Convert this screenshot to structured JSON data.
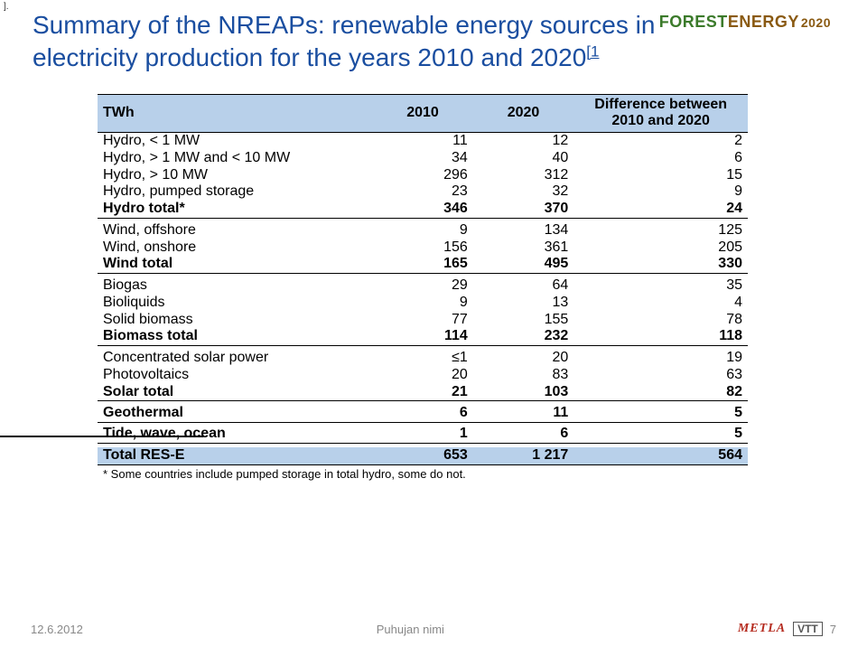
{
  "topleft": "].",
  "logo": {
    "forest": "FOREST",
    "energy": "ENERGY",
    "year": "2020"
  },
  "title": {
    "line1": "Summary of the NREAPs: renewable energy sources in",
    "line2": "electricity production for the years 2010 and 2020",
    "cite": "[1"
  },
  "table": {
    "head": {
      "c1": "TWh",
      "c2": "2010",
      "c3": "2020",
      "c4": "Difference between 2010 and 2020"
    },
    "rows": [
      {
        "sec": "hydro",
        "bold": false,
        "c1": "Hydro, < 1 MW",
        "c2": "11",
        "c3": "12",
        "c4": "2"
      },
      {
        "sec": "hydro",
        "bold": false,
        "c1": "Hydro, > 1 MW and < 10 MW",
        "c2": "34",
        "c3": "40",
        "c4": "6"
      },
      {
        "sec": "hydro",
        "bold": false,
        "c1": "Hydro, > 10 MW",
        "c2": "296",
        "c3": "312",
        "c4": "15"
      },
      {
        "sec": "hydro",
        "bold": false,
        "c1": "Hydro, pumped storage",
        "c2": "23",
        "c3": "32",
        "c4": "9"
      },
      {
        "sec": "hydro",
        "bold": true,
        "last": true,
        "c1": "Hydro total*",
        "c2": "346",
        "c3": "370",
        "c4": "24"
      },
      {
        "sec": "wind",
        "bold": false,
        "c1": "Wind, offshore",
        "c2": "9",
        "c3": "134",
        "c4": "125"
      },
      {
        "sec": "wind",
        "bold": false,
        "c1": "Wind, onshore",
        "c2": "156",
        "c3": "361",
        "c4": "205"
      },
      {
        "sec": "wind",
        "bold": true,
        "last": true,
        "c1": "Wind total",
        "c2": "165",
        "c3": "495",
        "c4": "330"
      },
      {
        "sec": "bio",
        "bold": false,
        "c1": "Biogas",
        "c2": "29",
        "c3": "64",
        "c4": "35"
      },
      {
        "sec": "bio",
        "bold": false,
        "c1": "Bioliquids",
        "c2": "9",
        "c3": "13",
        "c4": "4"
      },
      {
        "sec": "bio",
        "bold": false,
        "c1": "Solid biomass",
        "c2": "77",
        "c3": "155",
        "c4": "78"
      },
      {
        "sec": "bio",
        "bold": true,
        "last": true,
        "c1": "Biomass total",
        "c2": "114",
        "c3": "232",
        "c4": "118"
      },
      {
        "sec": "solar",
        "bold": false,
        "c1": "Concentrated solar power",
        "c2": "≤1",
        "c3": "20",
        "c4": "19"
      },
      {
        "sec": "solar",
        "bold": false,
        "c1": "Photovoltaics",
        "c2": "20",
        "c3": "83",
        "c4": "63"
      },
      {
        "sec": "solar",
        "bold": true,
        "last": true,
        "c1": "Solar total",
        "c2": "21",
        "c3": "103",
        "c4": "82"
      },
      {
        "sec": "geo",
        "bold": true,
        "last": true,
        "c1": "Geothermal",
        "c2": "6",
        "c3": "11",
        "c4": "5"
      },
      {
        "sec": "tide",
        "bold": true,
        "last": true,
        "c1": "Tide, wave, ocean",
        "c2": "1",
        "c3": "6",
        "c4": "5"
      }
    ],
    "total": {
      "c1": "Total RES-E",
      "c2": "653",
      "c3": "1 217",
      "c4": "564"
    },
    "footnote": "* Some countries include pumped storage in total hydro, some do not."
  },
  "footer": {
    "date": "12.6.2012",
    "center": "Puhujan nimi",
    "metla": "METLA",
    "vtt": "VTT",
    "num": "7"
  }
}
